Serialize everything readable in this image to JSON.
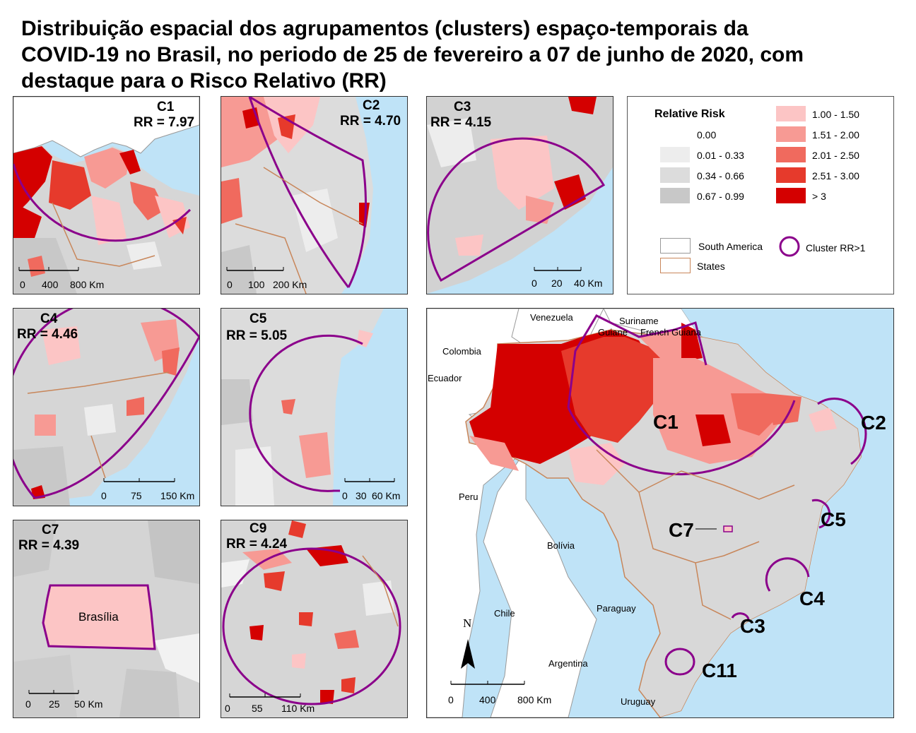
{
  "title_lines": [
    "Distribuição espacial dos agrupamentos (clusters) espaço-temporais da",
    "COVID-19 no Brasil, no periodo de 25 de fevereiro a 07 de junho de 2020, com",
    "destaque para o Risco Relativo (RR)"
  ],
  "colors": {
    "ocean": "#bfe3f7",
    "rr_0": "#ffffff",
    "rr_1": "#ededed",
    "rr_2": "#dcdcdc",
    "rr_3": "#c8c8c8",
    "rr_4": "#fcc5c5",
    "rr_5": "#f79a94",
    "rr_6": "#f06a5e",
    "rr_7": "#e63a2c",
    "rr_8": "#d40000",
    "cluster_outline": "#8b008b",
    "state_border": "#c8865a"
  },
  "panels": {
    "c1": {
      "name": "C1",
      "rr": "RR = 7.97",
      "scale": [
        "0",
        "400",
        "800 Km"
      ]
    },
    "c2": {
      "name": "C2",
      "rr": "RR = 4.70",
      "scale": [
        "0",
        "100",
        "200 Km"
      ]
    },
    "c3": {
      "name": "C3",
      "rr": "RR = 4.15",
      "scale": [
        "0",
        "20",
        "40 Km"
      ]
    },
    "c4": {
      "name": "C4",
      "rr": "RR = 4.46",
      "scale": [
        "0",
        "75",
        "150 Km"
      ]
    },
    "c5": {
      "name": "C5",
      "rr": "RR = 5.05",
      "scale": [
        "0",
        "30",
        "60 Km"
      ]
    },
    "c7": {
      "name": "C7",
      "rr": "RR = 4.39",
      "scale": [
        "0",
        "25",
        "50 Km"
      ],
      "city": "Brasília"
    },
    "c9": {
      "name": "C9",
      "rr": "RR = 4.24",
      "scale": [
        "0",
        "55",
        "110 Km"
      ]
    }
  },
  "legend": {
    "title": "Relative Risk",
    "classes": [
      "0.00",
      "0.01 - 0.33",
      "0.34 - 0.66",
      "0.67 - 0.99",
      "1.00 - 1.50",
      "1.51 - 2.00",
      "2.01 - 2.50",
      "2.51 - 3.00",
      "> 3"
    ],
    "south_america": "South America",
    "states": "States",
    "cluster": "Cluster RR>1"
  },
  "main_map": {
    "countries": [
      "Venezuela",
      "Suriname",
      "Guiane",
      "French Guiana",
      "Colombia",
      "Ecuador",
      "Peru",
      "Bolívia",
      "Paraguay",
      "Chile",
      "Argentina",
      "Uruguay"
    ],
    "clusters": [
      "C1",
      "C2",
      "C5",
      "C7",
      "C4",
      "C3",
      "C11"
    ],
    "north": "N",
    "scale": [
      "0",
      "400",
      "800 Km"
    ]
  }
}
